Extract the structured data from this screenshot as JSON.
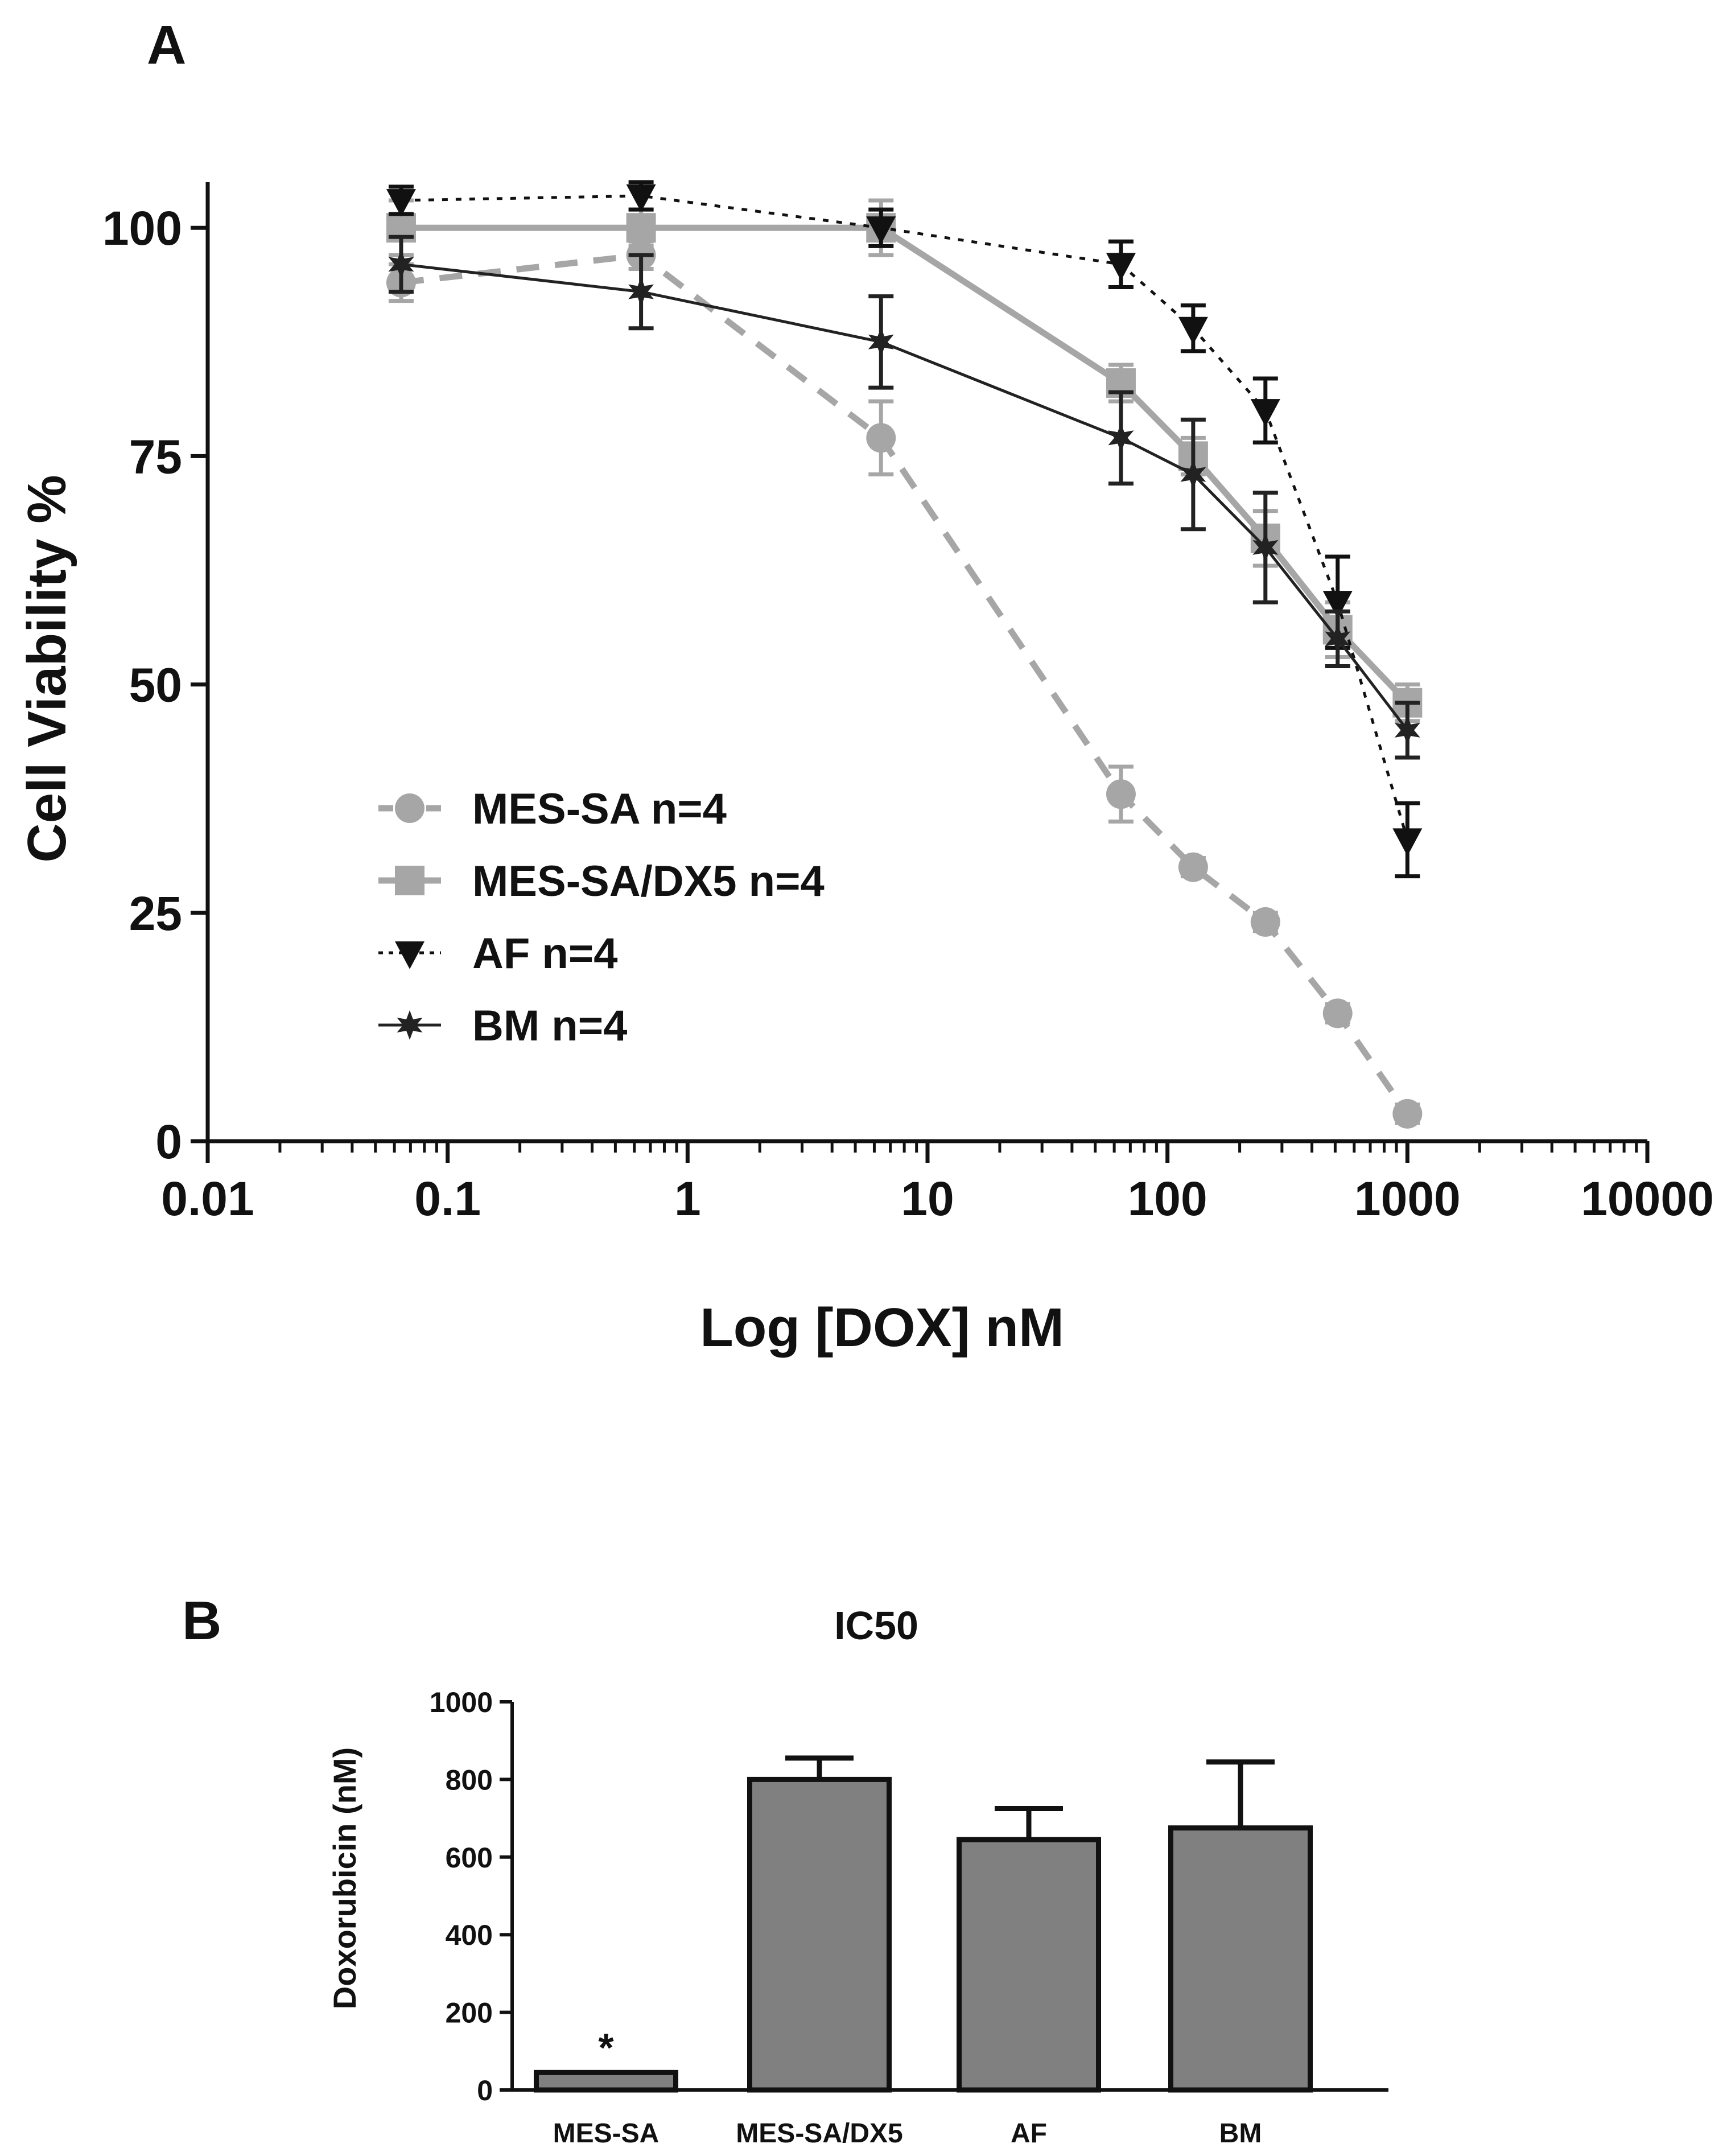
{
  "chart_data": [
    {
      "panel_label": "A",
      "type": "line",
      "xscale": "log",
      "xlabel": "Log [DOX] nM",
      "ylabel": "Cell Viability %",
      "xlim": [
        0.01,
        10000
      ],
      "ylim": [
        0,
        105
      ],
      "xticks": [
        0.01,
        0.1,
        1,
        10,
        100,
        1000,
        10000
      ],
      "xtick_labels": [
        "0.01",
        "0.1",
        "1",
        "10",
        "100",
        "1000",
        "10000"
      ],
      "yticks": [
        0,
        25,
        50,
        75,
        100
      ],
      "ytick_labels": [
        "0",
        "25",
        "50",
        "75",
        "100"
      ],
      "legend_position": "lower-left",
      "series": [
        {
          "name": "MES-SA n=4",
          "color": "#a6a6a6",
          "marker": "circle",
          "line": "dashed",
          "x": [
            0.064,
            0.64,
            6.4,
            64,
            128,
            256,
            512,
            1000
          ],
          "values": [
            94,
            97,
            77,
            38,
            30,
            24,
            14,
            3
          ],
          "errors": [
            2,
            1.5,
            4,
            3,
            1,
            1,
            1,
            1
          ]
        },
        {
          "name": "MES-SA/DX5 n=4",
          "color": "#a6a6a6",
          "marker": "square",
          "line": "solid",
          "x": [
            0.064,
            0.64,
            6.4,
            64,
            128,
            256,
            512,
            1000
          ],
          "values": [
            100,
            100,
            100,
            83,
            75,
            66,
            56,
            48
          ],
          "errors": [
            3,
            2,
            3,
            2,
            2,
            3,
            3,
            2
          ]
        },
        {
          "name": "AF n=4",
          "color": "#111111",
          "marker": "triangle-down",
          "line": "dotted",
          "x": [
            0.064,
            0.64,
            6.4,
            64,
            128,
            256,
            512,
            1000
          ],
          "values": [
            103,
            103.5,
            100,
            96,
            89,
            80,
            59,
            33
          ],
          "errors": [
            1.5,
            1.5,
            2,
            2.5,
            2.5,
            3.5,
            5,
            4
          ]
        },
        {
          "name": "BM n=4",
          "color": "#222222",
          "marker": "star",
          "line": "solid",
          "x": [
            0.064,
            0.64,
            6.4,
            64,
            128,
            256,
            512,
            1000
          ],
          "values": [
            96,
            93,
            87.5,
            77,
            73,
            65,
            55,
            45
          ],
          "errors": [
            3,
            4,
            5,
            5,
            6,
            6,
            3,
            3
          ]
        }
      ]
    },
    {
      "panel_label": "B",
      "type": "bar",
      "title": "IC50",
      "ylabel": "Doxorubicin (nM)",
      "xlabel": "",
      "ylim": [
        0,
        1000
      ],
      "yticks": [
        0,
        200,
        400,
        600,
        800,
        1000
      ],
      "ytick_labels": [
        "0",
        "200",
        "400",
        "600",
        "800",
        "1000"
      ],
      "categories": [
        "MES-SA",
        "MES-SA/DX5",
        "AF",
        "BM"
      ],
      "values": [
        45,
        800,
        645,
        675
      ],
      "errors": [
        0,
        55,
        80,
        170
      ],
      "annotations": [
        "*",
        "",
        "",
        ""
      ],
      "bar_color": "#808080"
    }
  ]
}
